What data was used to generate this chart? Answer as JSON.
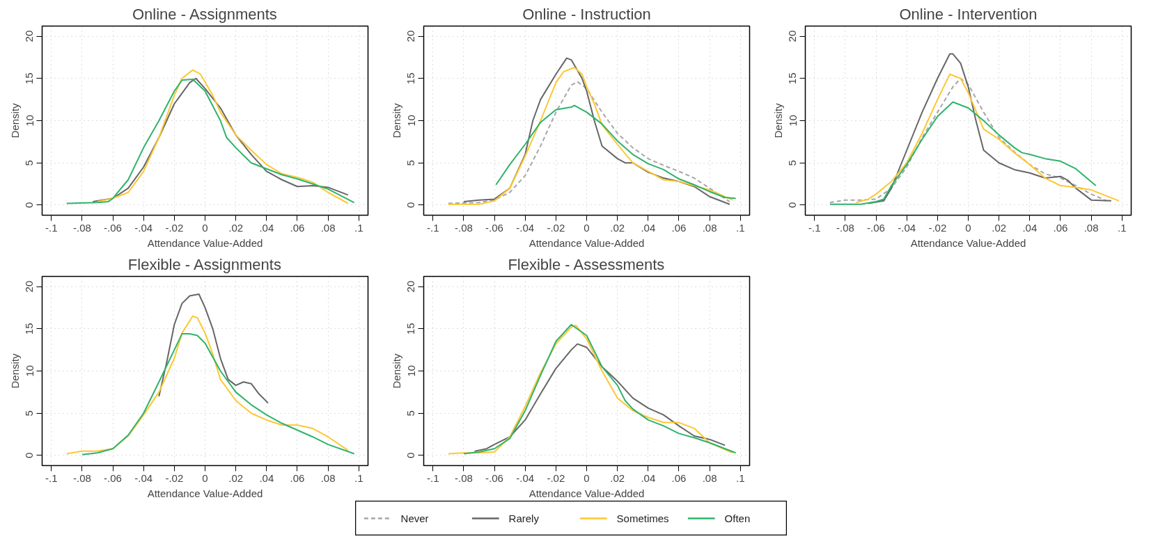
{
  "chart_data": [
    {
      "type": "line",
      "title": "Online - Assignments",
      "xlabel": "Attendance Value-Added",
      "ylabel": "Density",
      "xlim": [
        -0.106,
        0.106
      ],
      "ylim": [
        -1.2,
        21.2
      ],
      "xticks": [
        {
          "value": -0.1,
          "label": "-.1"
        },
        {
          "value": -0.08,
          "label": "-.08"
        },
        {
          "value": -0.06,
          "label": "-.06"
        },
        {
          "value": -0.04,
          "label": "-.04"
        },
        {
          "value": -0.02,
          "label": "-.02"
        },
        0,
        {
          "value": 0.02,
          "label": ".02"
        },
        {
          "value": 0.04,
          "label": ".04"
        },
        {
          "value": 0.06,
          "label": ".06"
        },
        {
          "value": 0.08,
          "label": ".08"
        },
        {
          "value": 0.1,
          "label": ".1"
        }
      ],
      "yticks": [
        0,
        5,
        10,
        15,
        20
      ],
      "grid": true,
      "line_style": "solid",
      "marker": "none",
      "series": [
        {
          "color": "#666666",
          "x": [
            -0.073,
            -0.06,
            -0.05,
            -0.04,
            -0.03,
            -0.02,
            -0.01,
            -0.006,
            0,
            0.01,
            0.02,
            0.03,
            0.04,
            0.05,
            0.06,
            0.07,
            0.08,
            0.093
          ],
          "values": [
            0.4,
            0.8,
            2.0,
            4.5,
            8,
            12,
            14.5,
            15.0,
            13.8,
            11.5,
            8.3,
            6.0,
            4.0,
            3.0,
            2.2,
            2.3,
            2.1,
            1.2
          ]
        },
        {
          "color": "#fdc733",
          "x": [
            -0.07,
            -0.06,
            -0.05,
            -0.04,
            -0.03,
            -0.02,
            -0.015,
            -0.008,
            -0.003,
            0.005,
            0.01,
            0.02,
            0.03,
            0.04,
            0.05,
            0.06,
            0.07,
            0.08,
            0.093
          ],
          "values": [
            0.4,
            0.8,
            1.5,
            4,
            8,
            13,
            15,
            16.0,
            15.5,
            13,
            11,
            8.3,
            6.5,
            4.8,
            3.7,
            3.3,
            2.7,
            1.5,
            0.2
          ]
        },
        {
          "color": "#2eb36b",
          "x": [
            -0.09,
            -0.07,
            -0.063,
            -0.06,
            -0.05,
            -0.04,
            -0.03,
            -0.02,
            -0.015,
            -0.008,
            0,
            0.01,
            0.014,
            0.02,
            0.03,
            0.04,
            0.05,
            0.06,
            0.07,
            0.08,
            0.097
          ],
          "values": [
            0.2,
            0.3,
            0.4,
            0.8,
            3,
            6.8,
            10,
            13.5,
            14.8,
            14.9,
            13.5,
            10,
            8,
            6.8,
            5.0,
            4.3,
            3.6,
            3.1,
            2.5,
            1.9,
            0.3
          ]
        }
      ]
    },
    {
      "type": "line",
      "title": "Online - Instruction",
      "xlabel": "Attendance Value-Added",
      "ylabel": "Density",
      "xlim": [
        -0.106,
        0.106
      ],
      "ylim": [
        -1.2,
        21.2
      ],
      "xticks": [
        {
          "value": -0.1,
          "label": "-.1"
        },
        {
          "value": -0.08,
          "label": "-.08"
        },
        {
          "value": -0.06,
          "label": "-.06"
        },
        {
          "value": -0.04,
          "label": "-.04"
        },
        {
          "value": -0.02,
          "label": "-.02"
        },
        0,
        {
          "value": 0.02,
          "label": ".02"
        },
        {
          "value": 0.04,
          "label": ".04"
        },
        {
          "value": 0.06,
          "label": ".06"
        },
        {
          "value": 0.08,
          "label": ".08"
        },
        {
          "value": 0.1,
          "label": ".1"
        }
      ],
      "yticks": [
        0,
        5,
        10,
        15,
        20
      ],
      "grid": true,
      "line_style": "solid",
      "marker": "none",
      "legend": "bottom",
      "series": [
        {
          "name": "Never",
          "color": "#a6a6a6",
          "line_style": "dashed",
          "x": [
            -0.09,
            -0.07,
            -0.06,
            -0.05,
            -0.04,
            -0.03,
            -0.02,
            -0.01,
            -0.006,
            0,
            0.01,
            0.02,
            0.03,
            0.04,
            0.05,
            0.06,
            0.07,
            0.08,
            0.093
          ],
          "values": [
            0.2,
            0.3,
            0.6,
            1.5,
            3.5,
            7,
            11,
            14.2,
            14.6,
            13.8,
            11,
            8.5,
            6.8,
            5.5,
            4.7,
            4.0,
            3.2,
            2.0,
            0.4
          ]
        },
        {
          "name": "Rarely",
          "color": "#666666",
          "x": [
            -0.08,
            -0.07,
            -0.06,
            -0.05,
            -0.04,
            -0.035,
            -0.03,
            -0.02,
            -0.013,
            -0.01,
            -0.003,
            0,
            0.005,
            0.01,
            0.02,
            0.025,
            0.03,
            0.04,
            0.05,
            0.06,
            0.07,
            0.08,
            0.093
          ],
          "values": [
            0.4,
            0.6,
            0.7,
            2.0,
            6,
            10,
            12.5,
            15.5,
            17.4,
            17.2,
            15,
            13.5,
            10,
            7,
            5.5,
            5.0,
            5.0,
            3.9,
            3.2,
            2.8,
            2.2,
            1.0,
            0.1
          ]
        },
        {
          "name": "Sometimes",
          "color": "#fdc733",
          "x": [
            -0.09,
            -0.07,
            -0.06,
            -0.05,
            -0.04,
            -0.03,
            -0.02,
            -0.015,
            -0.008,
            -0.003,
            0,
            0.005,
            0.01,
            0.02,
            0.03,
            0.04,
            0.05,
            0.06,
            0.07,
            0.08,
            0.095
          ],
          "values": [
            0.1,
            0.1,
            0.5,
            2.0,
            5.8,
            10,
            14.5,
            15.8,
            16.3,
            15.5,
            14,
            12,
            9.5,
            7.2,
            5.0,
            4.0,
            3.0,
            2.8,
            2.3,
            1.8,
            0.6
          ]
        },
        {
          "name": "Often",
          "color": "#2eb36b",
          "x": [
            -0.059,
            -0.05,
            -0.04,
            -0.03,
            -0.02,
            -0.01,
            -0.008,
            0,
            0.01,
            0.02,
            0.03,
            0.04,
            0.05,
            0.06,
            0.07,
            0.08,
            0.09,
            0.097
          ],
          "values": [
            2.4,
            4.8,
            7.2,
            9.8,
            11.3,
            11.6,
            11.8,
            11,
            9.6,
            7.6,
            6.0,
            4.9,
            4.2,
            3.1,
            2.4,
            1.6,
            0.9,
            0.8
          ]
        }
      ]
    },
    {
      "type": "line",
      "title": "Online - Intervention",
      "xlabel": "Attendance Value-Added",
      "ylabel": "Density",
      "xlim": [
        -0.106,
        0.106
      ],
      "ylim": [
        -1.2,
        21.2
      ],
      "xticks": [
        {
          "value": -0.1,
          "label": "-.1"
        },
        {
          "value": -0.08,
          "label": "-.08"
        },
        {
          "value": -0.06,
          "label": "-.06"
        },
        {
          "value": -0.04,
          "label": "-.04"
        },
        {
          "value": -0.02,
          "label": "-.02"
        },
        0,
        {
          "value": 0.02,
          "label": ".02"
        },
        {
          "value": 0.04,
          "label": ".04"
        },
        {
          "value": 0.06,
          "label": ".06"
        },
        {
          "value": 0.08,
          "label": ".08"
        },
        {
          "value": 0.1,
          "label": ".1"
        }
      ],
      "yticks": [
        0,
        5,
        10,
        15,
        20
      ],
      "grid": true,
      "line_style": "solid",
      "marker": "none",
      "series": [
        {
          "color": "#a6a6a6",
          "line_style": "dashed",
          "x": [
            -0.09,
            -0.08,
            -0.07,
            -0.06,
            -0.05,
            -0.04,
            -0.03,
            -0.02,
            -0.01,
            -0.005,
            0,
            0.01,
            0.02,
            0.03,
            0.04,
            0.05,
            0.06,
            0.07,
            0.08,
            0.09
          ],
          "values": [
            0.3,
            0.6,
            0.6,
            0.7,
            2,
            4.5,
            8,
            11,
            14,
            15.0,
            14.3,
            11,
            8,
            6.3,
            4.8,
            3.7,
            3.2,
            2.3,
            1.3,
            0.5
          ]
        },
        {
          "color": "#666666",
          "x": [
            -0.065,
            -0.055,
            -0.05,
            -0.04,
            -0.03,
            -0.02,
            -0.012,
            -0.01,
            -0.005,
            0,
            0.005,
            0.01,
            0.02,
            0.03,
            0.04,
            0.05,
            0.06,
            0.065,
            0.07,
            0.08,
            0.093
          ],
          "values": [
            0.2,
            0.5,
            2,
            6.5,
            11,
            15,
            17.9,
            17.9,
            16.8,
            14,
            10,
            6.5,
            5.0,
            4.2,
            3.8,
            3.2,
            3.4,
            2.9,
            2.0,
            0.6,
            0.5
          ]
        },
        {
          "color": "#fdc733",
          "x": [
            -0.073,
            -0.065,
            -0.06,
            -0.05,
            -0.04,
            -0.03,
            -0.02,
            -0.012,
            -0.005,
            0,
            0.01,
            0.02,
            0.03,
            0.04,
            0.05,
            0.06,
            0.07,
            0.08,
            0.098
          ],
          "values": [
            0.3,
            0.7,
            1.3,
            2.8,
            5,
            8.5,
            12.5,
            15.5,
            15,
            13.3,
            9,
            7.8,
            6.2,
            4.8,
            3.2,
            2.3,
            2.1,
            1.8,
            0.5
          ]
        },
        {
          "color": "#2eb36b",
          "x": [
            -0.09,
            -0.07,
            -0.06,
            -0.055,
            -0.05,
            -0.04,
            -0.03,
            -0.02,
            -0.01,
            0,
            0.01,
            0.02,
            0.03,
            0.035,
            0.04,
            0.05,
            0.06,
            0.07,
            0.083
          ],
          "values": [
            0.1,
            0.1,
            0.4,
            0.7,
            2.3,
            4.8,
            7.8,
            10.5,
            12.2,
            11.5,
            10,
            8.3,
            6.8,
            6.2,
            6.0,
            5.5,
            5.2,
            4.3,
            2.3
          ]
        }
      ]
    },
    {
      "type": "line",
      "title": "Flexible - Assignments",
      "xlabel": "Attendance Value-Added",
      "ylabel": "Density",
      "xlim": [
        -0.106,
        0.106
      ],
      "ylim": [
        -1.2,
        21.2
      ],
      "xticks": [
        {
          "value": -0.1,
          "label": "-.1"
        },
        {
          "value": -0.08,
          "label": "-.08"
        },
        {
          "value": -0.06,
          "label": "-.06"
        },
        {
          "value": -0.04,
          "label": "-.04"
        },
        {
          "value": -0.02,
          "label": "-.02"
        },
        0,
        {
          "value": 0.02,
          "label": ".02"
        },
        {
          "value": 0.04,
          "label": ".04"
        },
        {
          "value": 0.06,
          "label": ".06"
        },
        {
          "value": 0.08,
          "label": ".08"
        },
        {
          "value": 0.1,
          "label": ".1"
        }
      ],
      "yticks": [
        0,
        5,
        10,
        15,
        20
      ],
      "grid": true,
      "line_style": "solid",
      "marker": "none",
      "series": [
        {
          "color": "#666666",
          "x": [
            -0.03,
            -0.025,
            -0.02,
            -0.015,
            -0.01,
            -0.007,
            -0.004,
            0,
            0.005,
            0.01,
            0.015,
            0.02,
            0.025,
            0.03,
            0.035,
            0.041
          ],
          "values": [
            7,
            11,
            15.5,
            18,
            18.9,
            19.0,
            19.1,
            17.5,
            15,
            11.5,
            9.0,
            8.3,
            8.7,
            8.5,
            7.3,
            6.2
          ]
        },
        {
          "color": "#fdc733",
          "x": [
            -0.09,
            -0.08,
            -0.07,
            -0.06,
            -0.05,
            -0.04,
            -0.03,
            -0.02,
            -0.015,
            -0.008,
            -0.005,
            0,
            0.005,
            0.01,
            0.02,
            0.03,
            0.04,
            0.05,
            0.06,
            0.07,
            0.08,
            0.093
          ],
          "values": [
            0.2,
            0.5,
            0.5,
            0.8,
            2.3,
            4.8,
            7.5,
            11.5,
            14.5,
            16.5,
            16.3,
            14.5,
            12,
            9,
            6.5,
            5.0,
            4.2,
            3.6,
            3.6,
            3.2,
            2.2,
            0.6
          ]
        },
        {
          "color": "#2eb36b",
          "x": [
            -0.08,
            -0.07,
            -0.06,
            -0.05,
            -0.04,
            -0.03,
            -0.02,
            -0.015,
            -0.01,
            -0.005,
            0,
            0.01,
            0.02,
            0.03,
            0.04,
            0.05,
            0.06,
            0.07,
            0.08,
            0.097
          ],
          "values": [
            0.1,
            0.3,
            0.8,
            2.4,
            5.0,
            8.7,
            12.5,
            14.4,
            14.4,
            14.2,
            13.3,
            10.0,
            7.5,
            6.0,
            4.8,
            3.8,
            3.0,
            2.2,
            1.3,
            0.2
          ]
        }
      ]
    },
    {
      "type": "line",
      "title": "Flexible - Assessments",
      "xlabel": "Attendance Value-Added",
      "ylabel": "Density",
      "xlim": [
        -0.106,
        0.106
      ],
      "ylim": [
        -1.2,
        21.2
      ],
      "xticks": [
        {
          "value": -0.1,
          "label": "-.1"
        },
        {
          "value": -0.08,
          "label": "-.08"
        },
        {
          "value": -0.06,
          "label": "-.06"
        },
        {
          "value": -0.04,
          "label": "-.04"
        },
        {
          "value": -0.02,
          "label": "-.02"
        },
        0,
        {
          "value": 0.02,
          "label": ".02"
        },
        {
          "value": 0.04,
          "label": ".04"
        },
        {
          "value": 0.06,
          "label": ".06"
        },
        {
          "value": 0.08,
          "label": ".08"
        },
        {
          "value": 0.1,
          "label": ".1"
        }
      ],
      "yticks": [
        0,
        5,
        10,
        15,
        20
      ],
      "grid": true,
      "line_style": "solid",
      "marker": "none",
      "series": [
        {
          "color": "#666666",
          "x": [
            -0.073,
            -0.065,
            -0.06,
            -0.05,
            -0.04,
            -0.03,
            -0.02,
            -0.01,
            -0.006,
            0,
            0.01,
            0.02,
            0.03,
            0.04,
            0.05,
            0.06,
            0.07,
            0.08,
            0.09
          ],
          "values": [
            0.5,
            0.8,
            1.3,
            2.2,
            4.2,
            7.3,
            10.3,
            12.5,
            13.2,
            12.8,
            10.5,
            8.8,
            6.8,
            5.6,
            4.8,
            3.5,
            2.3,
            1.9,
            1.2
          ]
        },
        {
          "color": "#fdc733",
          "x": [
            -0.09,
            -0.08,
            -0.07,
            -0.06,
            -0.05,
            -0.04,
            -0.03,
            -0.02,
            -0.01,
            -0.007,
            0,
            0.01,
            0.02,
            0.03,
            0.04,
            0.05,
            0.06,
            0.07,
            0.08,
            0.095
          ],
          "values": [
            0.2,
            0.3,
            0.3,
            0.4,
            2.2,
            5.8,
            9.8,
            13.2,
            15.2,
            15.4,
            13.8,
            10,
            6.8,
            5.3,
            4.5,
            3.9,
            3.9,
            3.2,
            1.5,
            0.3
          ]
        },
        {
          "color": "#2eb36b",
          "x": [
            -0.08,
            -0.07,
            -0.06,
            -0.05,
            -0.04,
            -0.03,
            -0.02,
            -0.01,
            0,
            0.01,
            0.02,
            0.025,
            0.03,
            0.04,
            0.05,
            0.06,
            0.07,
            0.08,
            0.097
          ],
          "values": [
            0.2,
            0.4,
            0.8,
            2.0,
            5.3,
            9.5,
            13.5,
            15.5,
            14.2,
            10.5,
            8.3,
            6.5,
            5.5,
            4.2,
            3.5,
            2.6,
            2.1,
            1.5,
            0.3
          ]
        }
      ]
    }
  ]
}
